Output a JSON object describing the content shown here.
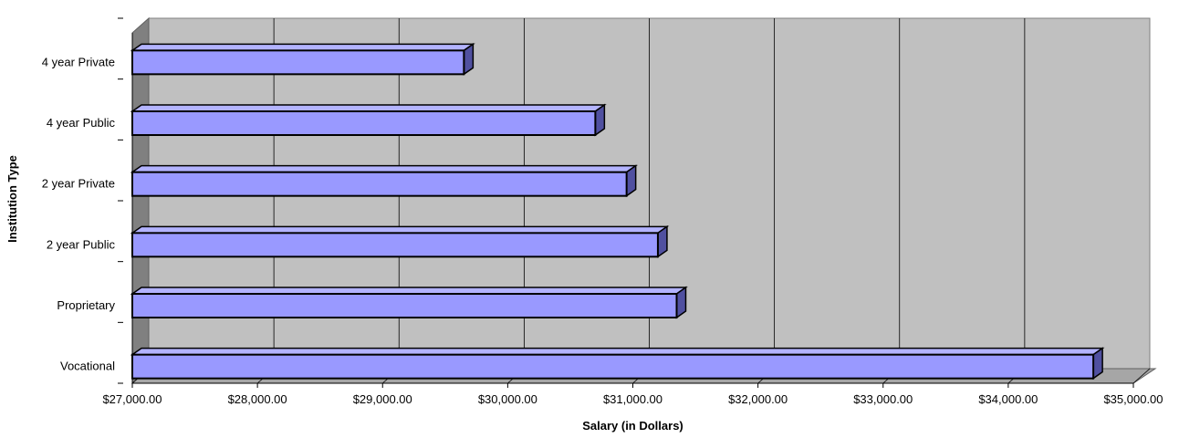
{
  "chart_data": {
    "type": "bar",
    "orientation": "horizontal",
    "style": "3d",
    "title": "",
    "xlabel": "Salary (in Dollars)",
    "ylabel": "Institution Type",
    "categories": [
      "Vocational",
      "Proprietary",
      "2 year Public",
      "2 year Private",
      "4 year Public",
      "4 year Private"
    ],
    "values": [
      34680,
      31350,
      31200,
      30950,
      30700,
      29650
    ],
    "xlim": [
      27000,
      35000
    ],
    "x_ticks": [
      27000,
      28000,
      29000,
      30000,
      31000,
      32000,
      33000,
      34000,
      35000
    ],
    "x_tick_labels": [
      "$27,000.00",
      "$28,000.00",
      "$29,000.00",
      "$30,000.00",
      "$31,000.00",
      "$32,000.00",
      "$33,000.00",
      "$34,000.00",
      "$35,000.00"
    ],
    "grid": "vertical",
    "legend": "none",
    "colors": {
      "bar_front": "#9999ff",
      "bar_top": "#b3b3ff",
      "bar_side": "#5050a0",
      "plot_back": "#c0c0c0",
      "plot_floor": "#a6a6a6",
      "plot_wall": "#808080",
      "bar_outline": "#000000"
    }
  }
}
